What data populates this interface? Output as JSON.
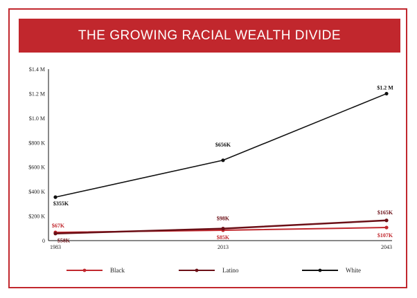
{
  "title": "THE GROWING RACIAL WEALTH DIVIDE",
  "colors": {
    "frame": "#c1272d",
    "banner": "#c1272d",
    "black_series": "#c1272d",
    "latino_series": "#6b0f16",
    "white_series": "#111111"
  },
  "chart_data": {
    "type": "line",
    "title": "THE GROWING RACIAL WEALTH DIVIDE",
    "x": [
      "1983",
      "2013",
      "2043"
    ],
    "y_ticks": [
      "0",
      "$200 K",
      "$400 K",
      "$600 K",
      "$800 K",
      "$1.0 M",
      "$1.2 M",
      "$1.4 M"
    ],
    "ylim": [
      0,
      1400000
    ],
    "grid": false,
    "legend_position": "bottom",
    "series": [
      {
        "name": "Black",
        "values": [
          67000,
          85000,
          107000
        ],
        "labels": [
          "$67K",
          "$85K",
          "$107K"
        ],
        "color": "#c1272d"
      },
      {
        "name": "Latino",
        "values": [
          58000,
          98000,
          165000
        ],
        "labels": [
          "$58K",
          "$98K",
          "$165K"
        ],
        "color": "#6b0f16"
      },
      {
        "name": "White",
        "values": [
          355000,
          656000,
          1200000
        ],
        "labels": [
          "$355K",
          "$656K",
          "$1.2 M"
        ],
        "color": "#111111"
      }
    ]
  }
}
